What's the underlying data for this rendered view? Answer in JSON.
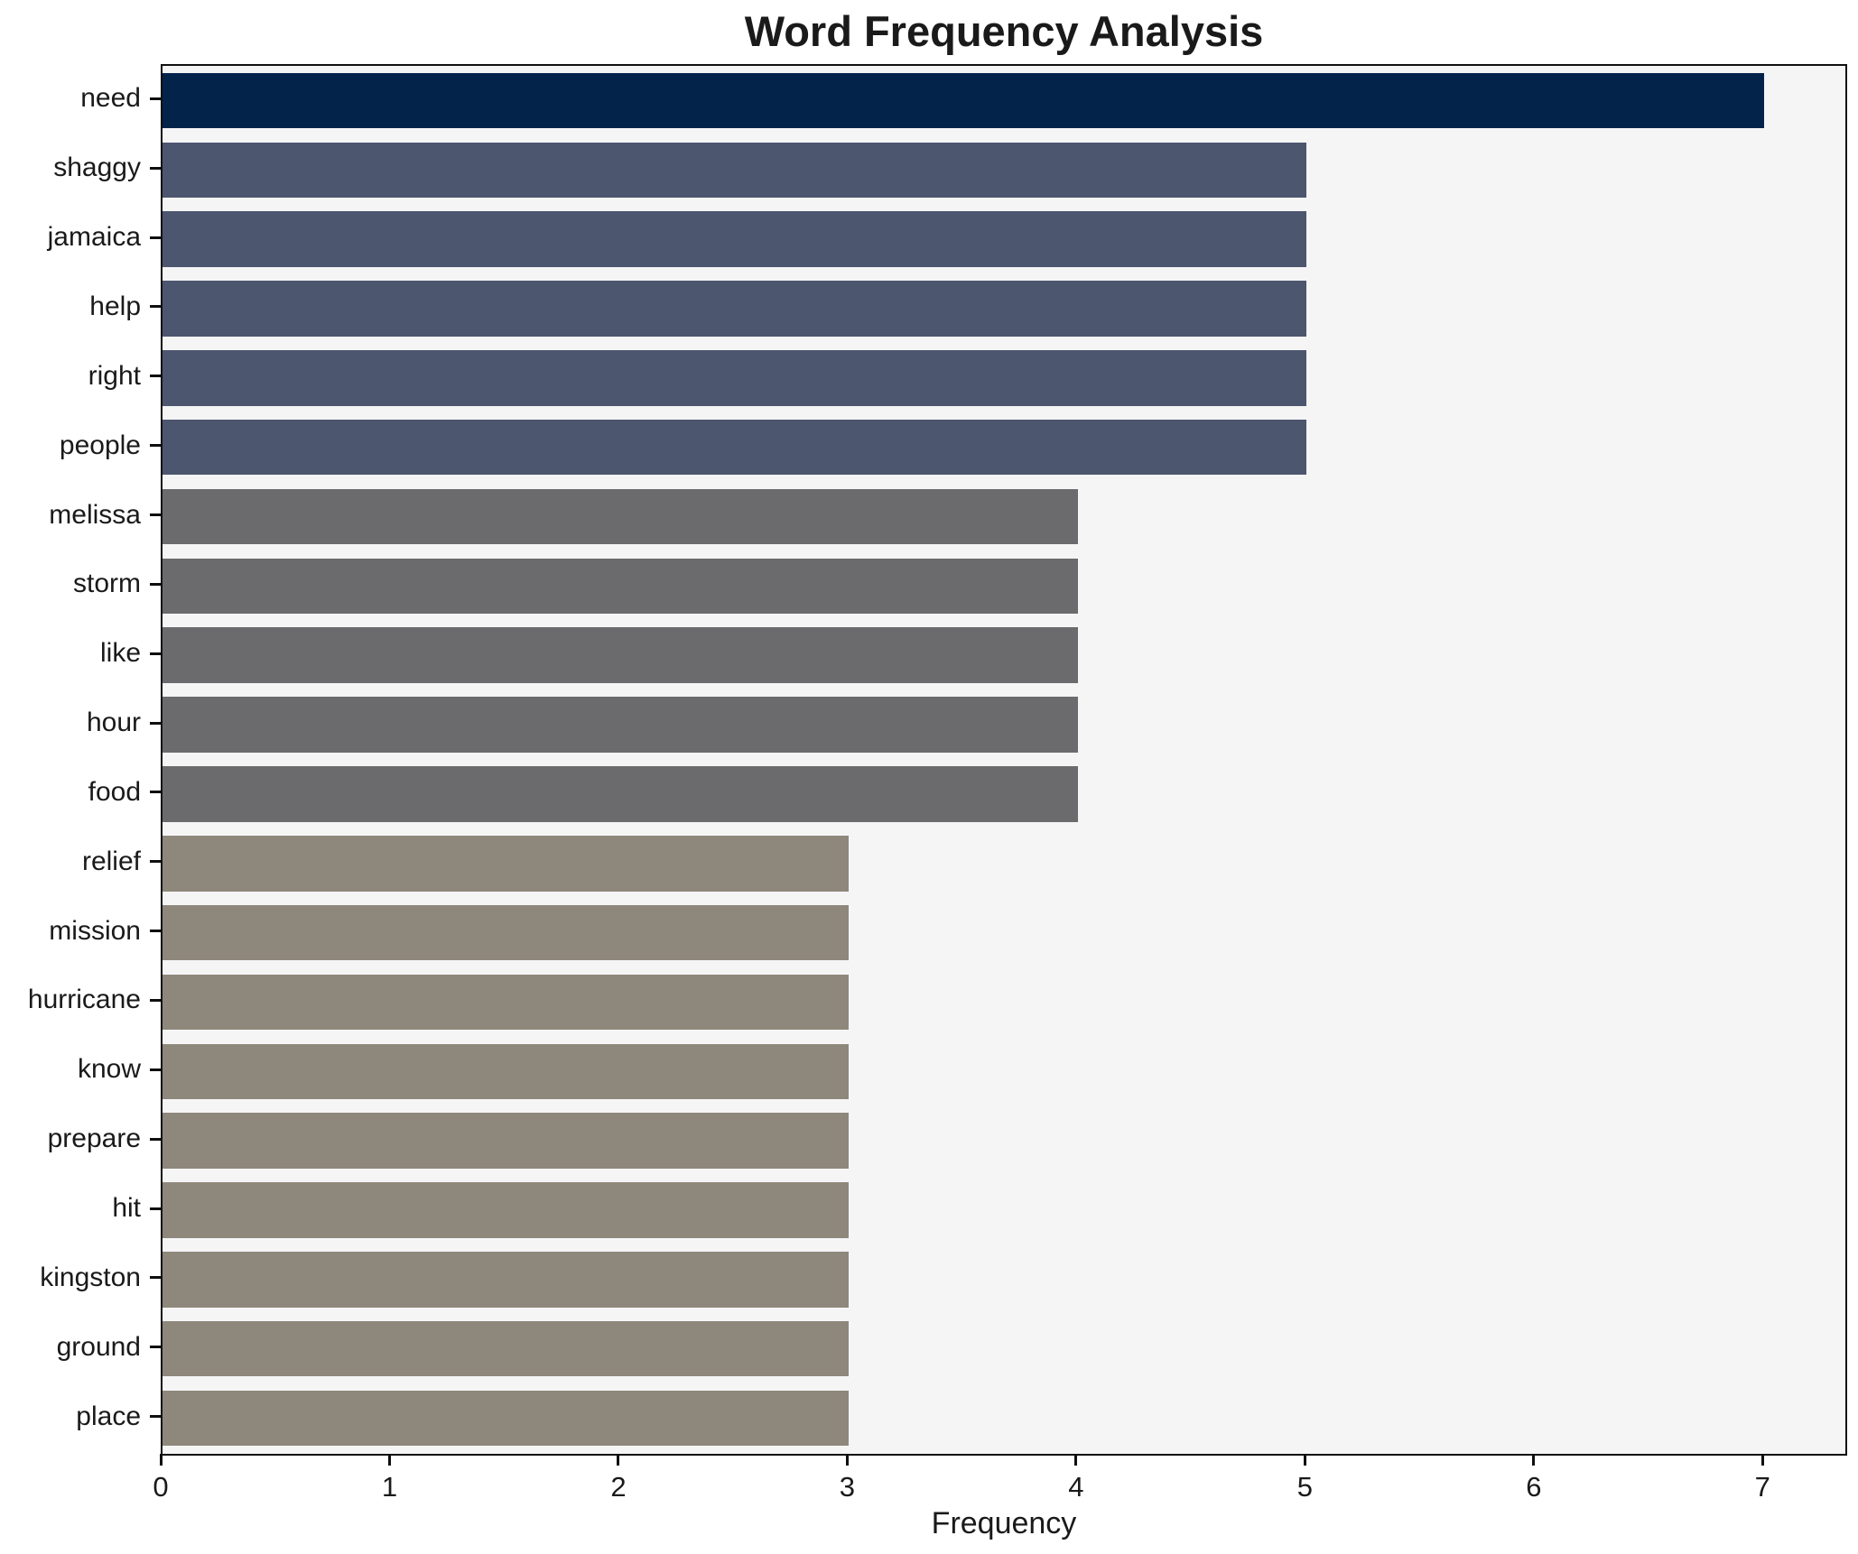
{
  "chart_data": {
    "type": "bar",
    "orientation": "horizontal",
    "title": "Word Frequency Analysis",
    "xlabel": "Frequency",
    "ylabel": "",
    "categories": [
      "need",
      "shaggy",
      "jamaica",
      "help",
      "right",
      "people",
      "melissa",
      "storm",
      "like",
      "hour",
      "food",
      "relief",
      "mission",
      "hurricane",
      "know",
      "prepare",
      "hit",
      "kingston",
      "ground",
      "place"
    ],
    "values": [
      7,
      5,
      5,
      5,
      5,
      5,
      4,
      4,
      4,
      4,
      4,
      3,
      3,
      3,
      3,
      3,
      3,
      3,
      3,
      3
    ],
    "bar_colors": [
      "#03234b",
      "#4d566f",
      "#4d566f",
      "#4d566f",
      "#4d566f",
      "#4d566f",
      "#6b6b6e",
      "#6b6b6e",
      "#6b6b6e",
      "#6b6b6e",
      "#6b6b6e",
      "#8e877b",
      "#8e877b",
      "#8e877b",
      "#8e877b",
      "#8e877b",
      "#8e877b",
      "#8e877b",
      "#8e877b",
      "#8e877b"
    ],
    "xlim": [
      0,
      7.35
    ],
    "xticks": [
      "0",
      "1",
      "2",
      "3",
      "4",
      "5",
      "6",
      "7"
    ],
    "grid": false,
    "legend": null,
    "plot_background": "#f5f5f6",
    "figure_background": "#ffffff",
    "spine_color": "#0f0f0f"
  }
}
